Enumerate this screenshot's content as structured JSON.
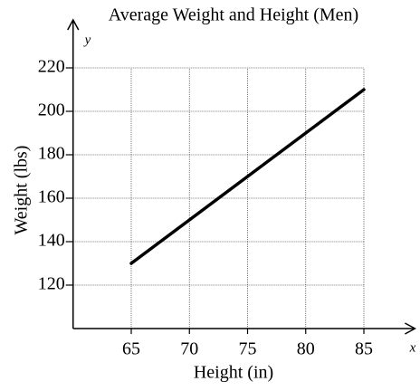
{
  "chart_data": {
    "type": "line",
    "title": "Average Weight and Height (Men)",
    "x_label": "Height (in)",
    "y_label": "Weight (lbs)",
    "x_axis_name": "x",
    "y_axis_name": "y",
    "x": [
      65,
      70,
      75,
      80,
      85
    ],
    "series": [
      {
        "name": "Weight",
        "color": "#000000",
        "values": [
          130,
          150,
          170,
          190,
          210
        ]
      }
    ],
    "xlim": [
      60,
      89
    ],
    "ylim": [
      100,
      240
    ],
    "xticks": [
      65,
      70,
      75,
      80,
      85
    ],
    "yticks": [
      120,
      140,
      160,
      180,
      200,
      220
    ],
    "grid": true
  }
}
